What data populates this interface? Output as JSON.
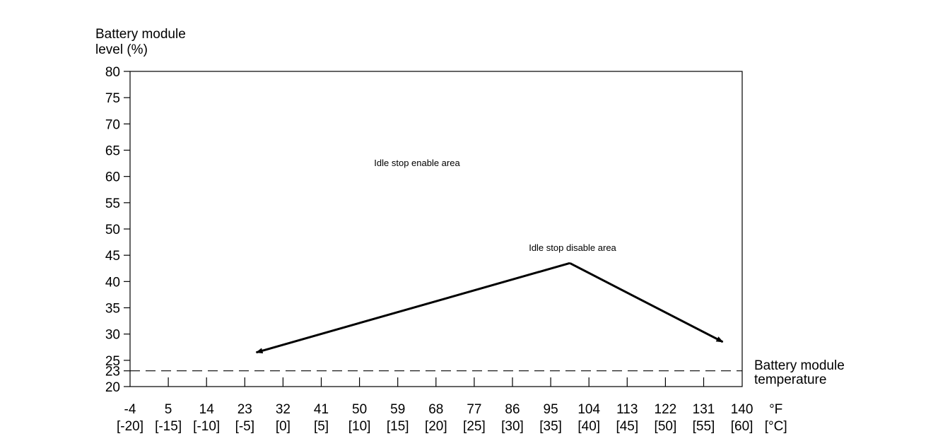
{
  "chart_data": {
    "type": "line",
    "ylabel_line1": "Battery module",
    "ylabel_line2": "level (%)",
    "xlabel_line1": "Battery module",
    "xlabel_line2": "temperature",
    "y_ticks": [
      20,
      25,
      30,
      35,
      40,
      45,
      50,
      55,
      60,
      65,
      70,
      75,
      80
    ],
    "y_extra_tick": 23,
    "ylim": [
      20,
      80
    ],
    "x_ticks_f": [
      "-4",
      "5",
      "14",
      "23",
      "32",
      "41",
      "50",
      "59",
      "68",
      "77",
      "86",
      "95",
      "104",
      "113",
      "122",
      "131",
      "140"
    ],
    "x_ticks_c": [
      "[-20]",
      "[-15]",
      "[-10]",
      "[-5]",
      "[0]",
      "[5]",
      "[10]",
      "[15]",
      "[20]",
      "[25]",
      "[30]",
      "[35]",
      "[40]",
      "[45]",
      "[50]",
      "[55]",
      "[60]"
    ],
    "x_unit_f": "°F",
    "x_unit_c": "[°C]",
    "xlim_c": [
      -20,
      60
    ],
    "threshold": {
      "y": 23,
      "style": "dashed"
    },
    "annotations": {
      "enable_area": "Idle stop enable area",
      "disable_area": "Idle stop disable area"
    },
    "arrows": [
      {
        "from": [
          37.5,
          43.5
        ],
        "to": [
          -3.5,
          26.5
        ]
      },
      {
        "from": [
          37.5,
          43.5
        ],
        "to": [
          57.5,
          28.5
        ]
      }
    ]
  }
}
